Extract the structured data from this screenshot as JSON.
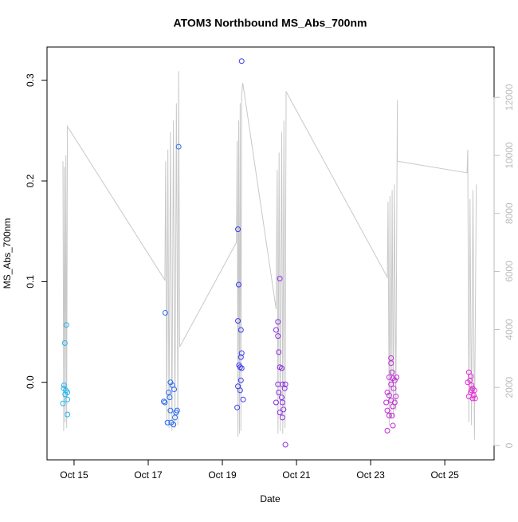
{
  "chart_data": {
    "type": "scatter",
    "title": "ATOM3 Northbound MS_Abs_700nm",
    "x_label": "Date",
    "y_label": "MS_Abs_700nm",
    "xlim": [
      14.27,
      26.33
    ],
    "xticks": [
      {
        "value": 15,
        "label": "Oct 15"
      },
      {
        "value": 17,
        "label": "Oct 17"
      },
      {
        "value": 19,
        "label": "Oct 19"
      },
      {
        "value": 21,
        "label": "Oct 21"
      },
      {
        "value": 23,
        "label": "Oct 23"
      },
      {
        "value": 25,
        "label": "Oct 25"
      }
    ],
    "ylim": [
      -0.077,
      0.333
    ],
    "yticks": [
      {
        "value": 0,
        "label": "0.0"
      },
      0.1,
      0.2,
      0.3
    ],
    "y2lim": [
      -495,
      13736
    ],
    "y2ticks": [
      0,
      2000,
      4000,
      6000,
      8000,
      10000,
      12000
    ],
    "y2_color": "#bbbbbb",
    "grid": false,
    "series": [
      {
        "color": "#1eb4f0",
        "x": [
          14.79,
          14.75,
          14.73,
          14.72,
          14.78,
          14.82,
          14.7,
          14.82,
          14.82,
          14.76
        ],
        "values": [
          0.057,
          0.039,
          -0.003,
          -0.006,
          -0.008,
          -0.01,
          -0.021,
          -0.017,
          -0.032,
          -0.012
        ]
      },
      {
        "color": "#2a6bf0",
        "x": [
          17.46,
          17.82,
          17.6,
          17.65,
          17.7,
          17.55,
          17.42,
          17.45,
          17.6,
          17.75,
          17.72,
          17.62,
          17.52,
          17.68,
          17.78,
          17.58
        ],
        "values": [
          0.069,
          0.234,
          0.0,
          -0.003,
          -0.007,
          -0.01,
          -0.019,
          -0.02,
          -0.028,
          -0.03,
          -0.035,
          -0.04,
          -0.04,
          -0.042,
          -0.028,
          -0.015
        ]
      },
      {
        "color": "#3a3af0",
        "x": [
          19.52,
          19.42,
          19.44,
          19.42,
          19.5,
          19.52,
          19.5,
          19.45,
          19.48,
          19.52,
          19.5,
          19.42,
          19.48,
          19.56,
          19.4
        ],
        "values": [
          0.319,
          0.152,
          0.097,
          0.061,
          0.052,
          0.029,
          0.025,
          0.017,
          0.015,
          0.014,
          0.002,
          -0.004,
          -0.008,
          -0.017,
          -0.025
        ]
      },
      {
        "color": "#8a2be2",
        "x": [
          20.55,
          20.5,
          20.45,
          20.5,
          20.52,
          20.55,
          20.6,
          20.5,
          20.62,
          20.7,
          20.52,
          20.68,
          20.45,
          20.6,
          20.62,
          20.65,
          20.55,
          20.62,
          20.7
        ],
        "values": [
          0.103,
          0.06,
          0.052,
          0.046,
          0.03,
          0.015,
          0.014,
          -0.002,
          -0.002,
          -0.002,
          -0.01,
          -0.006,
          -0.02,
          -0.015,
          -0.02,
          -0.027,
          -0.03,
          -0.035,
          -0.062
        ]
      },
      {
        "color": "#c12bd6",
        "x": [
          23.55,
          23.55,
          23.58,
          23.5,
          23.6,
          23.7,
          23.65,
          23.55,
          23.45,
          23.62,
          23.5,
          23.68,
          23.42,
          23.55,
          23.6,
          23.45,
          23.5,
          23.58,
          23.6,
          23.45,
          23.65
        ],
        "values": [
          0.024,
          0.019,
          0.01,
          0.005,
          0.004,
          0.005,
          0.002,
          -0.002,
          -0.01,
          -0.006,
          -0.013,
          -0.014,
          -0.02,
          -0.018,
          -0.024,
          -0.028,
          -0.033,
          -0.033,
          -0.043,
          -0.048,
          -0.02
        ]
      },
      {
        "color": "#e52bd6",
        "x": [
          25.65,
          25.7,
          25.62,
          25.68,
          25.72,
          25.75,
          25.8,
          25.7,
          25.65,
          25.78,
          25.75,
          25.82,
          25.72
        ],
        "values": [
          0.01,
          0.006,
          0.0,
          0.002,
          -0.003,
          -0.006,
          -0.008,
          -0.01,
          -0.014,
          -0.013,
          -0.016,
          -0.016,
          -0.008
        ]
      },
      {
        "type": "line",
        "axis": "y2",
        "color": "#c8c8c8",
        "x": [
          14.7,
          14.72,
          14.74,
          14.76,
          14.78,
          14.8,
          14.82,
          17.45,
          17.47,
          17.5,
          17.53,
          17.56,
          17.6,
          17.64,
          17.68,
          17.72,
          17.76,
          17.8,
          17.82,
          17.85,
          19.38,
          19.4,
          19.42,
          19.44,
          19.46,
          19.48,
          19.5,
          19.52,
          19.55,
          20.45,
          20.48,
          20.5,
          20.53,
          20.56,
          20.6,
          20.63,
          20.66,
          20.69,
          20.72,
          23.45,
          23.47,
          23.5,
          23.52,
          23.55,
          23.58,
          23.61,
          23.64,
          23.68,
          23.72,
          23.72,
          25.6,
          25.62,
          25.65,
          25.68,
          25.72,
          25.76,
          25.8,
          25.85
        ],
        "values": [
          9800,
          500,
          9600,
          800,
          10000,
          600,
          11000,
          5700,
          9800,
          700,
          10200,
          600,
          10800,
          500,
          11200,
          600,
          11800,
          700,
          12900,
          3400,
          7000,
          10500,
          300,
          11200,
          400,
          11800,
          500,
          12100,
          12500,
          4700,
          9500,
          400,
          10100,
          500,
          10800,
          400,
          11200,
          600,
          12200,
          5800,
          8400,
          700,
          8600,
          900,
          8800,
          1000,
          9000,
          1200,
          11900,
          9800,
          9400,
          10200,
          800,
          8500,
          700,
          8800,
          200,
          9000
        ]
      }
    ]
  }
}
